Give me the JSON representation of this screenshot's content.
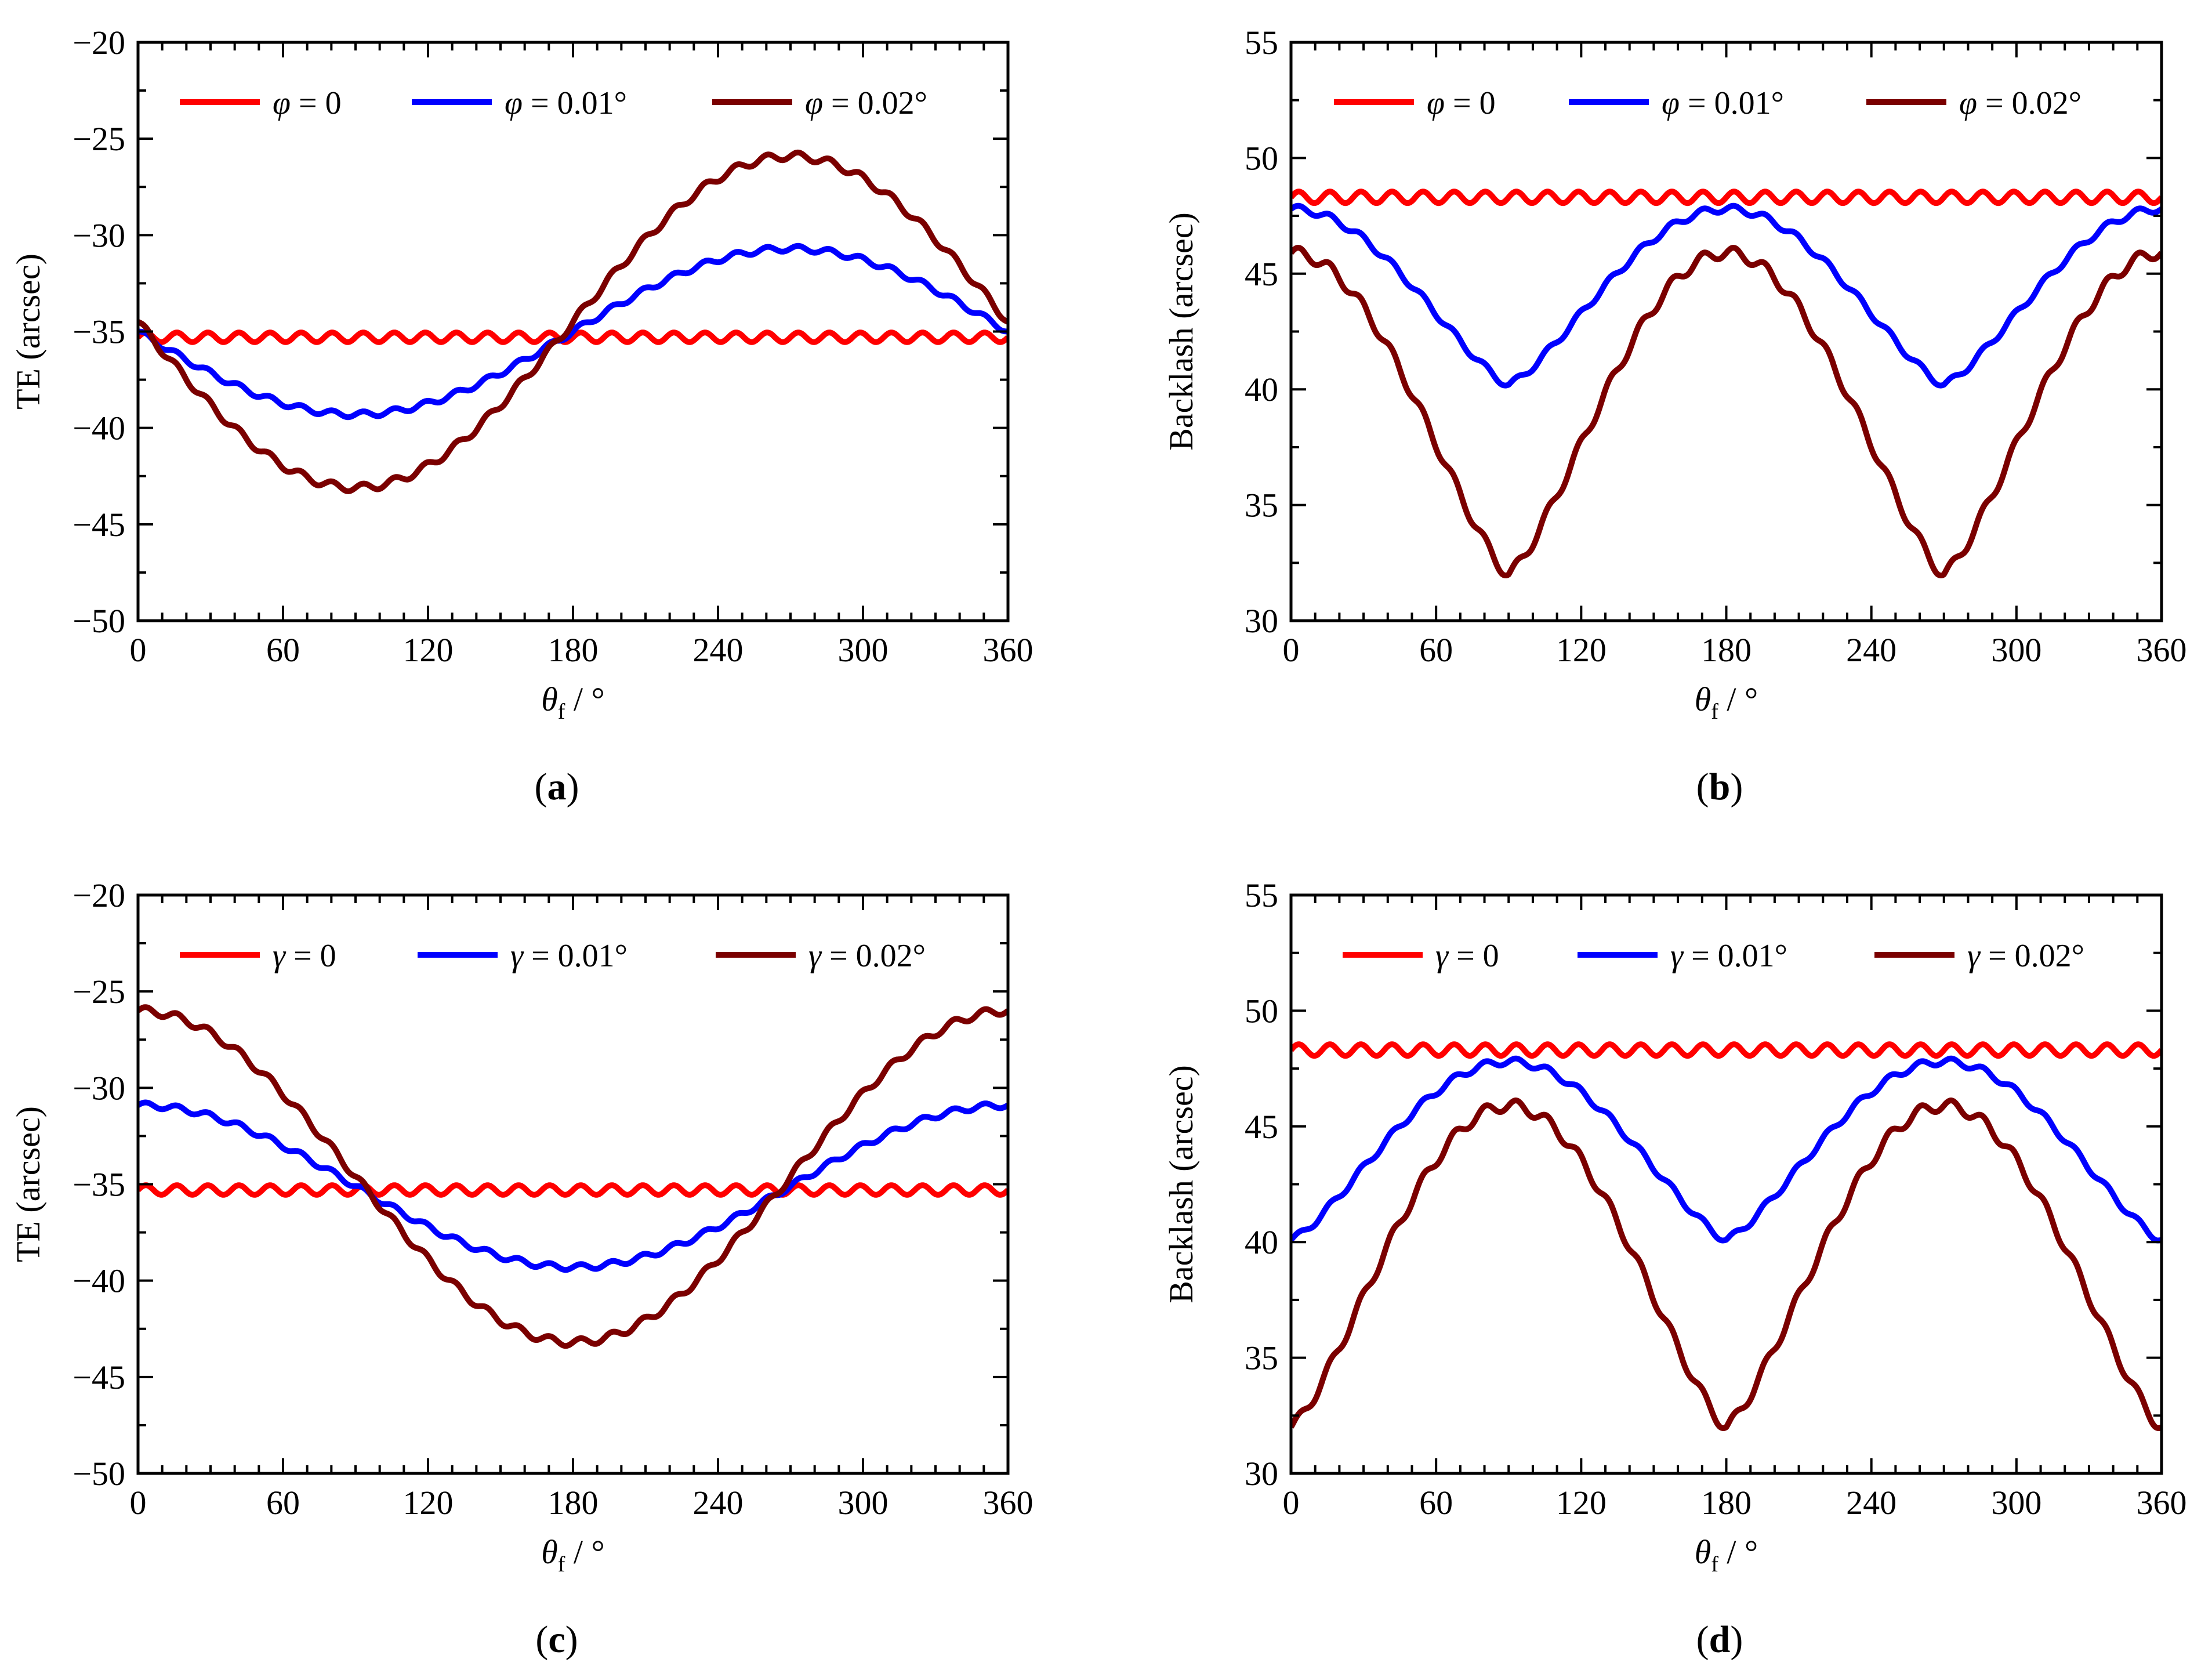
{
  "colors": {
    "red": "#ff0000",
    "blue": "#0000ff",
    "maroon": "#7b0000",
    "axis": "#000000"
  },
  "chart_data": [
    {
      "type": "line",
      "panel": "a",
      "caption": {
        "open": "(",
        "letter": "a",
        "close": ")"
      },
      "ylabel": "TE (arcsec)",
      "xlabel": {
        "symbol": "θ",
        "subscript": "f",
        "unit": " / °"
      },
      "xlim": [
        0,
        360
      ],
      "ylim": [
        -50,
        -20
      ],
      "xticks": [
        "0",
        "60",
        "120",
        "180",
        "240",
        "300",
        "360"
      ],
      "yticks": [
        "−50",
        "−45",
        "−40",
        "−35",
        "−30",
        "−25",
        "−20"
      ],
      "series": [
        {
          "name": "φ = 0",
          "symbol": "φ",
          "value_text": "= 0",
          "color": "#ff0000",
          "form": "flat",
          "mean": -35.3,
          "ripple": 0.25
        },
        {
          "name": "φ = 0.01°",
          "symbol": "φ",
          "value_text": "= 0.01°",
          "color": "#0000ff",
          "form": "sin",
          "center": -35,
          "amplitude": -4.3,
          "ripple": 0.15
        },
        {
          "name": "φ = 0.02°",
          "symbol": "φ",
          "value_text": "= 0.02°",
          "color": "#7b0000",
          "form": "sin",
          "center": -34.5,
          "amplitude": -8.6,
          "ripple": 0.2
        }
      ]
    },
    {
      "type": "line",
      "panel": "b",
      "caption": {
        "open": "(",
        "letter": "b",
        "close": ")"
      },
      "ylabel": "Backlash (arcsec)",
      "xlabel": {
        "symbol": "θ",
        "subscript": "f",
        "unit": " / °"
      },
      "xlim": [
        0,
        360
      ],
      "ylim": [
        30,
        55
      ],
      "xticks": [
        "0",
        "60",
        "120",
        "180",
        "240",
        "300",
        "360"
      ],
      "yticks": [
        "30",
        "35",
        "40",
        "45",
        "50",
        "55"
      ],
      "series": [
        {
          "name": "φ = 0",
          "symbol": "φ",
          "value_text": "= 0",
          "color": "#ff0000",
          "form": "flat",
          "mean": 48.3,
          "ripple": 0.25
        },
        {
          "name": "φ = 0.01°",
          "symbol": "φ",
          "value_text": "= 0.01°",
          "color": "#0000ff",
          "form": "abscos",
          "phase": 0,
          "top": 47.8,
          "bottom": 40.2,
          "ripple": 0.15
        },
        {
          "name": "φ = 0.02°",
          "symbol": "φ",
          "value_text": "= 0.02°",
          "color": "#7b0000",
          "form": "abscos",
          "phase": 0,
          "top": 45.9,
          "bottom": 32.0,
          "ripple": 0.25
        }
      ]
    },
    {
      "type": "line",
      "panel": "c",
      "caption": {
        "open": "(",
        "letter": "c",
        "close": ")"
      },
      "ylabel": "TE (arcsec)",
      "xlabel": {
        "symbol": "θ",
        "subscript": "f",
        "unit": " / °"
      },
      "xlim": [
        0,
        360
      ],
      "ylim": [
        -50,
        -20
      ],
      "xticks": [
        "0",
        "60",
        "120",
        "180",
        "240",
        "300",
        "360"
      ],
      "yticks": [
        "−50",
        "−45",
        "−40",
        "−35",
        "−30",
        "−25",
        "−20"
      ],
      "series": [
        {
          "name": "γ = 0",
          "symbol": "γ",
          "value_text": "= 0",
          "color": "#ff0000",
          "form": "flat",
          "mean": -35.3,
          "ripple": 0.25
        },
        {
          "name": "γ = 0.01°",
          "symbol": "γ",
          "value_text": "= 0.01°",
          "color": "#0000ff",
          "form": "cos",
          "center": -35.1,
          "amplitude": 4.2,
          "ripple": 0.15
        },
        {
          "name": "γ = 0.02°",
          "symbol": "γ",
          "value_text": "= 0.02°",
          "color": "#7b0000",
          "form": "cos",
          "center": -34.6,
          "amplitude": 8.6,
          "ripple": 0.2
        }
      ]
    },
    {
      "type": "line",
      "panel": "d",
      "caption": {
        "open": "(",
        "letter": "d",
        "close": ")"
      },
      "ylabel": "Backlash (arcsec)",
      "xlabel": {
        "symbol": "θ",
        "subscript": "f",
        "unit": " / °"
      },
      "xlim": [
        0,
        360
      ],
      "ylim": [
        30,
        55
      ],
      "xticks": [
        "0",
        "60",
        "120",
        "180",
        "240",
        "300",
        "360"
      ],
      "yticks": [
        "30",
        "35",
        "40",
        "45",
        "50",
        "55"
      ],
      "series": [
        {
          "name": "γ = 0",
          "symbol": "γ",
          "value_text": "= 0",
          "color": "#ff0000",
          "form": "flat",
          "mean": 48.3,
          "ripple": 0.25
        },
        {
          "name": "γ = 0.01°",
          "symbol": "γ",
          "value_text": "= 0.01°",
          "color": "#0000ff",
          "form": "abscos",
          "phase": 90,
          "top": 47.8,
          "bottom": 40.1,
          "ripple": 0.15
        },
        {
          "name": "γ = 0.02°",
          "symbol": "γ",
          "value_text": "= 0.02°",
          "color": "#7b0000",
          "form": "abscos",
          "phase": 90,
          "top": 45.9,
          "bottom": 32.0,
          "ripple": 0.25
        }
      ]
    }
  ]
}
